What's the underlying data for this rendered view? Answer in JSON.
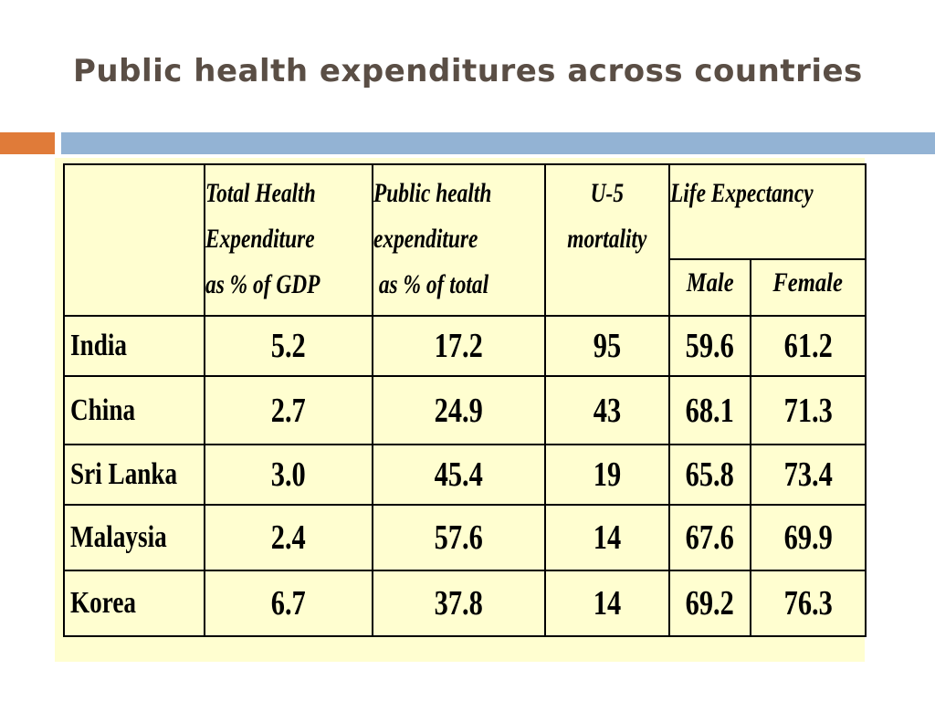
{
  "title": "Public health expenditures across countries",
  "colors": {
    "accent_orange": "#e07b39",
    "accent_blue": "#93b3d4",
    "table_bg": "#fffed0",
    "title_text": "#5a4e45"
  },
  "table": {
    "headers": {
      "total_health": [
        "Total Health",
        "Expenditure",
        "as % of GDP"
      ],
      "public_health": [
        "Public health",
        "expenditure",
        " as % of total"
      ],
      "u5": [
        "U-5",
        "mortality"
      ],
      "life_expectancy": "Life Expectancy",
      "male": "Male",
      "female": "Female"
    },
    "rows": [
      {
        "country": "India",
        "total": "5.2",
        "public": "17.2",
        "u5": "95",
        "male": "59.6",
        "female": "61.2"
      },
      {
        "country": "China",
        "total": "2.7",
        "public": "24.9",
        "u5": "43",
        "male": "68.1",
        "female": "71.3"
      },
      {
        "country": "Sri Lanka",
        "total": "3.0",
        "public": "45.4",
        "u5": "19",
        "male": "65.8",
        "female": "73.4"
      },
      {
        "country": "Malaysia",
        "total": "2.4",
        "public": "57.6",
        "u5": "14",
        "male": "67.6",
        "female": "69.9"
      },
      {
        "country": "Korea",
        "total": "6.7",
        "public": "37.8",
        "u5": "14",
        "male": "69.2",
        "female": "76.3"
      }
    ]
  }
}
